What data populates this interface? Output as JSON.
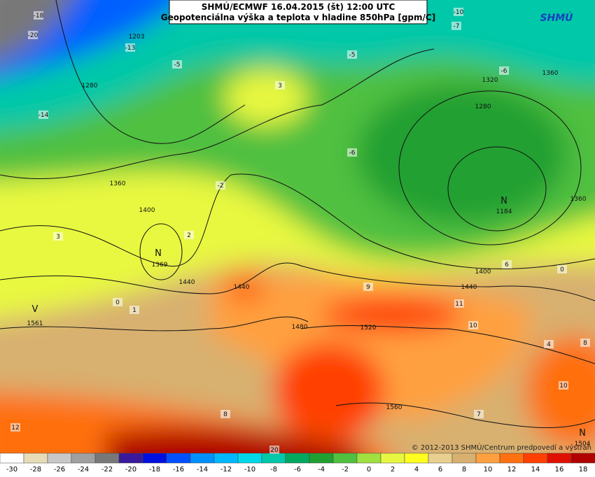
{
  "header": {
    "title": "SHMÚ/ECMWF 16.04.2015 (št) 12:00 UTC",
    "subtitle": "Geopotenciálna výška a teplota v hladine 850hPa [gpm/C]",
    "logo": "SHMÚ"
  },
  "footer": {
    "copyright": "© 2012-2013 SHMÚ/Centrum predpovedí a výstrah"
  },
  "colorbar": {
    "labels": [
      -30,
      -28,
      -26,
      -24,
      -22,
      -20,
      -18,
      -16,
      -14,
      -12,
      -10,
      -8,
      -6,
      -4,
      -2,
      0,
      2,
      4,
      6,
      8,
      10,
      12,
      14,
      16,
      18
    ],
    "colors": [
      "#ffffff",
      "#e8dcb8",
      "#c8c8c8",
      "#a0a0a0",
      "#787878",
      "#3a1a9a",
      "#0010e0",
      "#0050ff",
      "#0090ff",
      "#00b8ff",
      "#00d8e8",
      "#00c8a8",
      "#00a860",
      "#20a030",
      "#50c040",
      "#a0e040",
      "#e8f840",
      "#ffff20",
      "#e8d090",
      "#d8b070",
      "#ffa040",
      "#ff7010",
      "#ff4000",
      "#e01000",
      "#b00000"
    ]
  },
  "map": {
    "labels": [
      "-18",
      "-20",
      "1203",
      "-13",
      "-5",
      "-14",
      "1280",
      "3",
      "-5",
      "-10",
      "-7",
      "-6",
      "1320",
      "1360",
      "1280",
      "-6",
      "1360",
      "-2",
      "1400",
      "2",
      "3",
      "N",
      "1369",
      "1440",
      "1440",
      "0",
      "1",
      "V",
      "1561",
      "1480",
      "1520",
      "9",
      "1440",
      "11",
      "1400",
      "6",
      "0",
      "N",
      "1184",
      "1360",
      "10",
      "4",
      "8",
      "10",
      "1560",
      "7",
      "8",
      "12",
      "20",
      "N",
      "1504"
    ]
  }
}
